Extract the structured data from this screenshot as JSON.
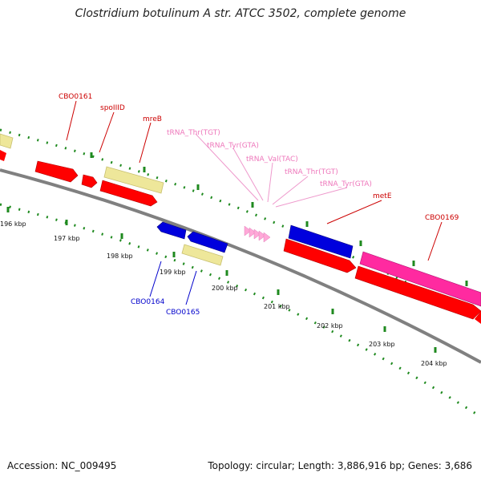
{
  "title": "Clostridium botulinum A str. ATCC 3502, complete genome",
  "footer": {
    "accession": "Accession: NC_009495",
    "summary": "Topology: circular; Length: 3,886,916 bp; Genes: 3,686"
  },
  "colors": {
    "red_gene": "#ff0000",
    "blue_gene": "#0000dd",
    "pink_gene": "#ff2aa0",
    "yellow_gene": "#eee79a",
    "trna": "#ffa8d8",
    "backbone": "#808080",
    "tick": "#1f8a1f",
    "label_red": "#cc0000",
    "label_blue": "#0000cc",
    "label_pink": "#ee77bb"
  },
  "kbp_labels": [
    "196 kbp",
    "197 kbp",
    "198 kbp",
    "199 kbp",
    "200 kbp",
    "201 kbp",
    "202 kbp",
    "203 kbp",
    "204 kbp"
  ],
  "gene_labels": {
    "cbo0161": "CBO0161",
    "spoiiid": "spoIIID",
    "mreb": "mreB",
    "trna_thr_tgt_1": "tRNA_Thr(TGT)",
    "trna_tyr_gta_1": "tRNA_Tyr(GTA)",
    "trna_val_tac": "tRNA_Val(TAC)",
    "trna_thr_tgt_2": "tRNA_Thr(TGT)",
    "trna_tyr_gta_2": "tRNA_Tyr(GTA)",
    "mete": "metE",
    "cbo0169": "CBO0169",
    "cbo0164": "CBO0164",
    "cbo0165": "CBO0165"
  }
}
